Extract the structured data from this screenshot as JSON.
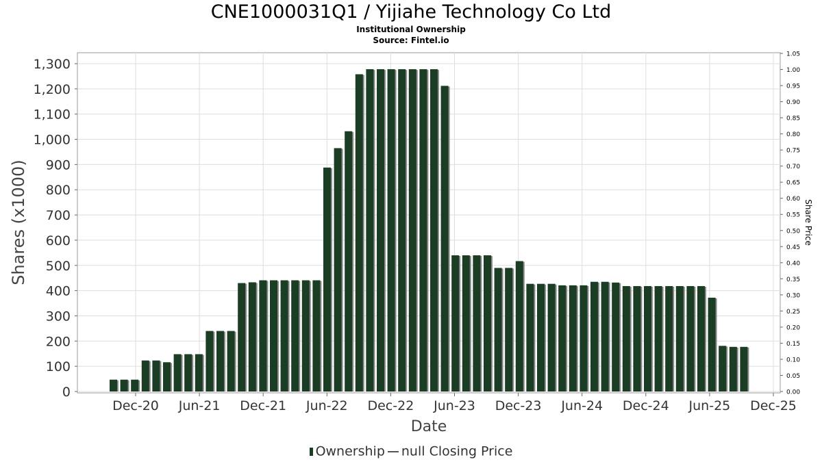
{
  "chart_data": {
    "type": "bar",
    "title": "CNE1000031Q1 / Yijiahe Technology Co Ltd",
    "subtitle": "Institutional Ownership",
    "source": "Source: Fintel.io",
    "xlabel": "Date",
    "ylabel": "Shares (x1000)",
    "y2label": "Share Price",
    "ylim": [
      0,
      1300
    ],
    "y2lim": [
      0,
      1.05
    ],
    "grid": true,
    "legend_position": "bottom-center",
    "colors": {
      "bar": "#1a3d24",
      "bar_shadow": "#8a8a8a",
      "grid": "#dddddd"
    },
    "x_ticks": [
      "Dec-20",
      "Jun-21",
      "Dec-21",
      "Jun-22",
      "Dec-22",
      "Jun-23",
      "Dec-23",
      "Jun-24",
      "Dec-24",
      "Jun-25",
      "Dec-25"
    ],
    "y_ticks": [
      "0",
      "100",
      "200",
      "300",
      "400",
      "500",
      "600",
      "700",
      "800",
      "900",
      "1,000",
      "1,100",
      "1,200",
      "1,300"
    ],
    "y2_ticks": [
      "0.00",
      "0.05",
      "0.10",
      "0.15",
      "0.20",
      "0.25",
      "0.30",
      "0.35",
      "0.40",
      "0.45",
      "0.50",
      "0.55",
      "0.60",
      "0.65",
      "0.70",
      "0.75",
      "0.80",
      "0.85",
      "0.90",
      "0.95",
      "1.00",
      "1.05"
    ],
    "series": [
      {
        "name": "Ownership",
        "values": [
          47,
          47,
          47,
          123,
          123,
          116,
          148,
          148,
          148,
          240,
          240,
          240,
          430,
          433,
          441,
          441,
          441,
          441,
          441,
          441,
          888,
          965,
          1032,
          1258,
          1278,
          1278,
          1278,
          1278,
          1278,
          1278,
          1278,
          1212,
          540,
          540,
          540,
          540,
          490,
          490,
          517,
          427,
          427,
          427,
          421,
          421,
          421,
          435,
          435,
          432,
          418,
          418,
          418,
          418,
          418,
          418,
          418,
          418,
          372,
          181,
          177,
          177
        ]
      }
    ],
    "legend": [
      {
        "label": "Ownership"
      },
      {
        "label": "null Closing Price"
      }
    ]
  }
}
